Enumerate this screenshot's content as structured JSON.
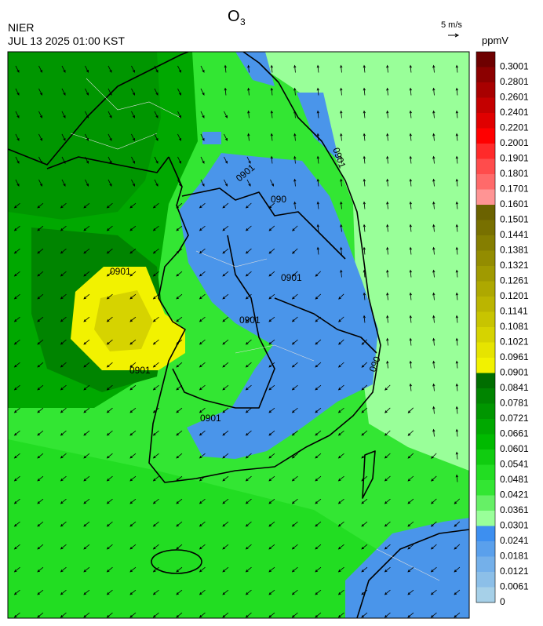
{
  "header": {
    "title": "O",
    "title_subscript": "3",
    "source": "NIER",
    "datetime": "JUL 13 2025 01:00 KST",
    "wind_scale": "5 m/s"
  },
  "colorbar": {
    "unit": "ppmV",
    "levels": [
      0.3001,
      0.2801,
      0.2601,
      0.2401,
      0.2201,
      0.2001,
      0.1901,
      0.1801,
      0.1701,
      0.1601,
      0.1501,
      0.1441,
      0.1381,
      0.1321,
      0.1261,
      0.1201,
      0.1141,
      0.1081,
      0.1021,
      0.0961,
      0.0901,
      0.0841,
      0.0781,
      0.0721,
      0.0661,
      0.0601,
      0.0541,
      0.0481,
      0.0421,
      0.0361,
      0.0301,
      0.0241,
      0.0181,
      0.0121,
      0.0061,
      0
    ],
    "colors": [
      "#6e0000",
      "#8c0000",
      "#a80000",
      "#c40000",
      "#e00000",
      "#ff0000",
      "#ff2a2a",
      "#ff4c4c",
      "#ff6a6a",
      "#ff9494",
      "#6b6200",
      "#787000",
      "#857e00",
      "#938c00",
      "#a09a00",
      "#aea800",
      "#bbb500",
      "#c8c400",
      "#d6d300",
      "#e6e400",
      "#f2f200",
      "#006e00",
      "#008400",
      "#009600",
      "#00a800",
      "#00ba00",
      "#10cc10",
      "#22dd22",
      "#33e633",
      "#66f066",
      "#99ff99",
      "#3d8ff0",
      "#5aa0ec",
      "#74b0ea",
      "#8cbfe8",
      "#a6d0e8"
    ]
  },
  "map": {
    "contour_labels": [
      "0901",
      "090",
      "0901",
      "0901",
      "0901",
      "0901",
      "0901",
      "0901",
      "090"
    ]
  }
}
